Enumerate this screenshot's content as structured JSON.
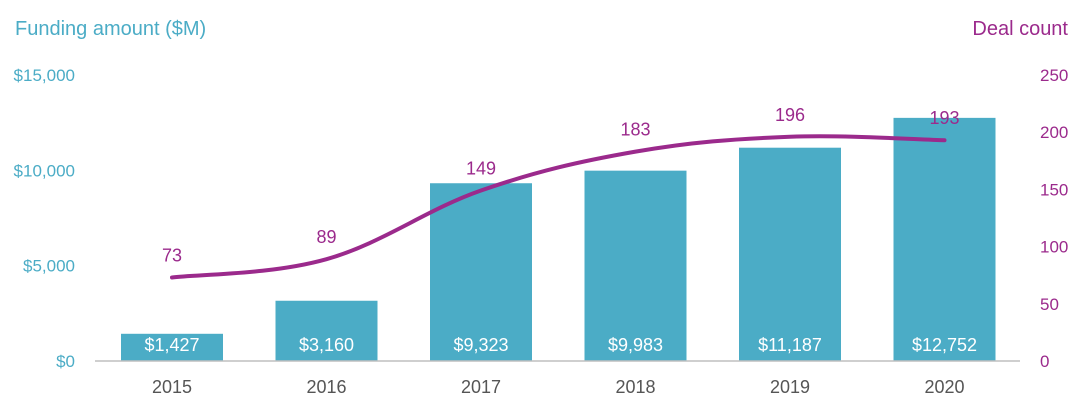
{
  "chart_data": {
    "type": "bar+line",
    "categories": [
      "2015",
      "2016",
      "2017",
      "2018",
      "2019",
      "2020"
    ],
    "left_axis": {
      "title": "Funding amount ($M)",
      "ticks": [
        "$0",
        "$5,000",
        "$10,000",
        "$15,000"
      ],
      "tick_values": [
        0,
        5000,
        10000,
        15000
      ],
      "ylim": [
        0,
        15000
      ]
    },
    "right_axis": {
      "title": "Deal count",
      "ticks": [
        "0",
        "50",
        "100",
        "150",
        "200",
        "250"
      ],
      "tick_values": [
        0,
        50,
        100,
        150,
        200,
        250
      ],
      "ylim": [
        0,
        250
      ]
    },
    "series": [
      {
        "name": "Funding amount ($M)",
        "type": "bar",
        "axis": "left",
        "values": [
          1427,
          3160,
          9323,
          9983,
          11187,
          12752
        ],
        "labels": [
          "$1,427",
          "$3,160",
          "$9,323",
          "$9,983",
          "$11,187",
          "$12,752"
        ]
      },
      {
        "name": "Deal count",
        "type": "line",
        "axis": "right",
        "values": [
          73,
          89,
          149,
          183,
          196,
          193
        ],
        "labels": [
          "73",
          "89",
          "149",
          "183",
          "196",
          "193"
        ]
      }
    ],
    "colors": {
      "bar": "#4BACC6",
      "line": "#9B2A8C",
      "left_axis": "#4BACC6",
      "right_axis": "#9B2A8C"
    }
  }
}
